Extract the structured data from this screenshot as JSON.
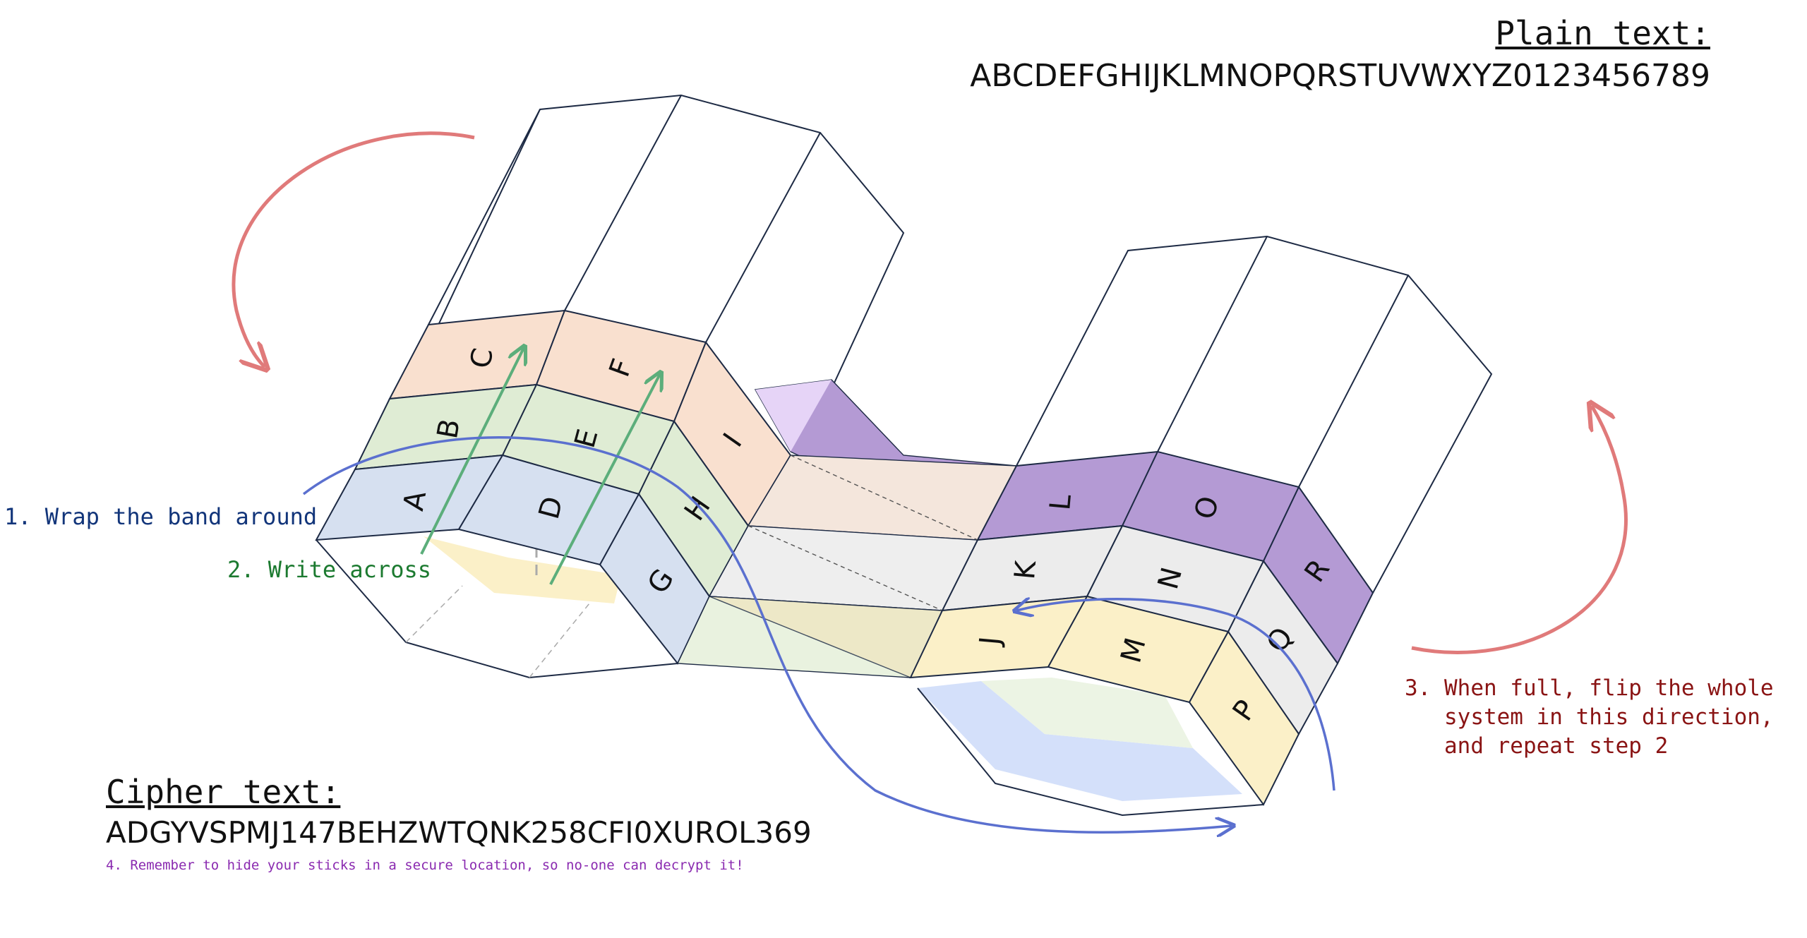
{
  "plain": {
    "title": "Plain text:",
    "value": "ABCDEFGHIJKLMNOPQRSTUVWXYZ0123456789"
  },
  "cipher": {
    "title": "Cipher text:",
    "value": "ADGYVSPMJ147BEHZWTQNK258CFI0XUROL369"
  },
  "steps": {
    "step1": "1. Wrap the band around",
    "step2": "2. Write across",
    "step3": [
      "3. When full, flip the whole",
      "   system in this direction,",
      "   and repeat step 2"
    ],
    "step4": "4. Remember to hide your sticks in a secure location, so no-one can decrypt it!"
  },
  "cells": {
    "a": "A",
    "b": "B",
    "c": "C",
    "d": "D",
    "e": "E",
    "f": "F",
    "g": "G",
    "h": "H",
    "i": "I",
    "j": "J",
    "k": "K",
    "l": "L",
    "m": "M",
    "n": "N",
    "o": "O",
    "p": "P",
    "q": "Q",
    "r": "R"
  },
  "colors": {
    "blue_band": "#d6e0f0",
    "green_band": "#dfecd4",
    "orange_band": "#f9e0cf",
    "yellow_band": "#fbf0c8",
    "gray_band": "#ececec",
    "purple_band": "#b49ad4",
    "flip_arrow": "#e07a7a",
    "wrap_arrow": "#5b70cf",
    "write_arrow": "#5cae7b"
  }
}
